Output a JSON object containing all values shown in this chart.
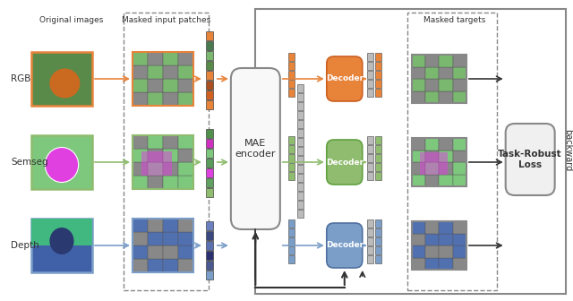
{
  "bg_color": "#ffffff",
  "title_font": 9,
  "label_font": 8,
  "arrow_color": "#333333",
  "orange_color": "#E8833A",
  "orange_light": "#F5B080",
  "green_color": "#8FBC6E",
  "green_light": "#B8D9A0",
  "blue_color": "#7B9EC8",
  "blue_light": "#A8C0DE",
  "blue_dark": "#5B6FA8",
  "gray_color": "#AAAAAA",
  "gray_dark": "#777777",
  "gray_light": "#DDDDDD",
  "encoder_color": "#F0F0F0",
  "decoder_color_rgb": "#E8833A",
  "decoder_color_seg": "#8FBC6E",
  "decoder_color_dep": "#7B9EC8",
  "box_color": "#F0F0F0",
  "box_edge": "#888888",
  "dashed_box_color": "#888888",
  "labels": {
    "original": "Original images",
    "masked_input": "Masked input patches",
    "masked_targets": "Masked targets",
    "mae": "MAE\nencoder",
    "decoder": "Decoder",
    "task_robust": "Task-Robust\nLoss",
    "backward": "backward",
    "rgb": "RGB",
    "semseg": "Semseg",
    "depth": "Depth"
  }
}
